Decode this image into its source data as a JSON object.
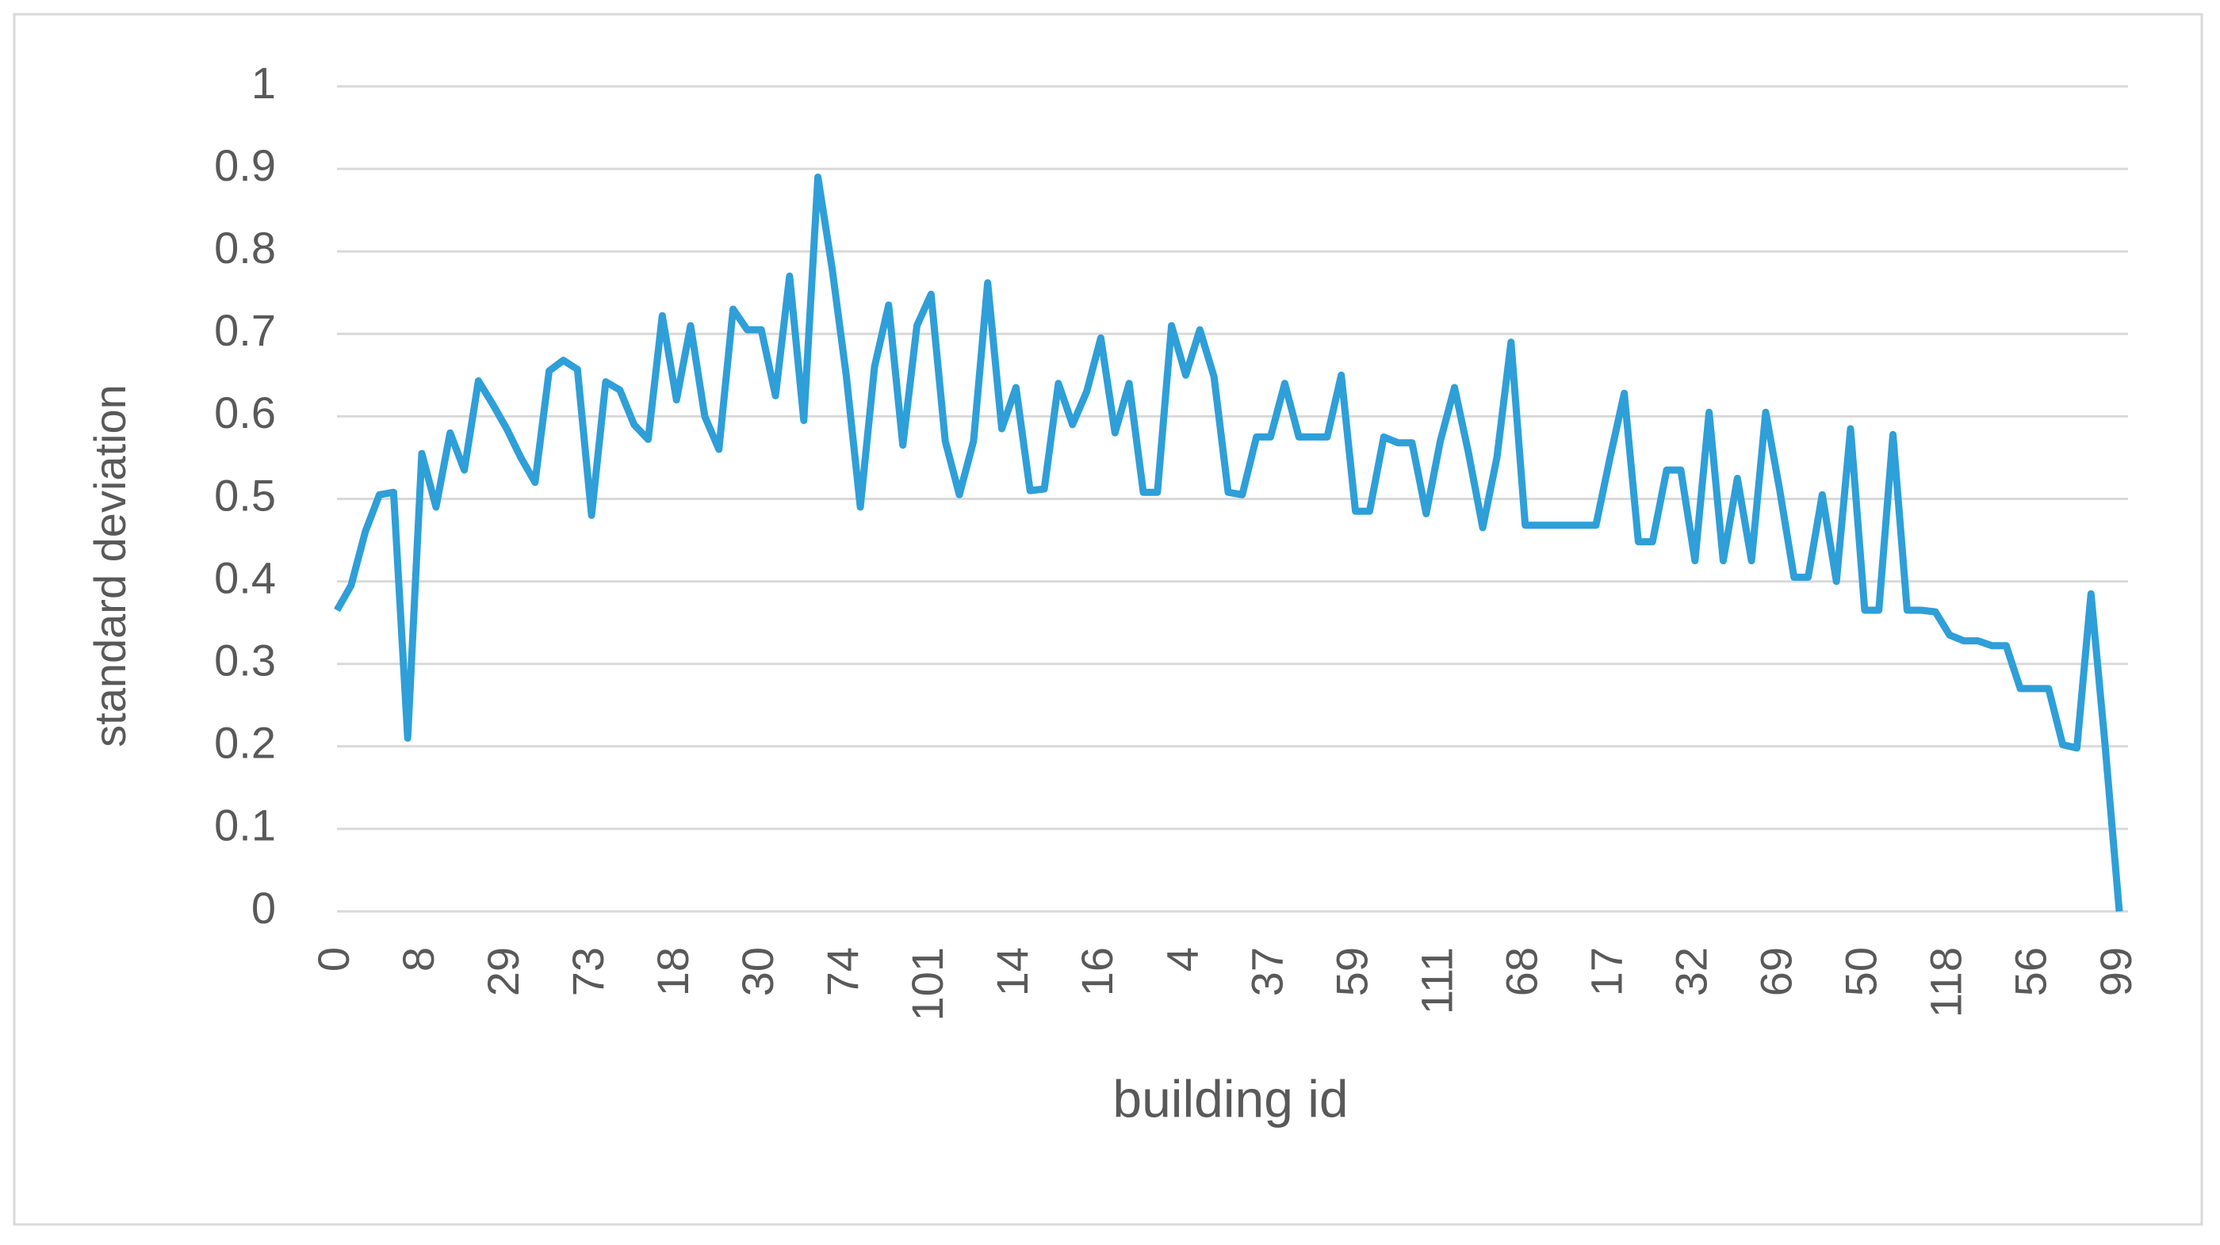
{
  "chart_data": {
    "type": "line",
    "x_label": "building id",
    "y_label": "standard deviation",
    "categories": [
      "0",
      null,
      null,
      null,
      null,
      null,
      "8",
      null,
      null,
      null,
      null,
      null,
      "29",
      null,
      null,
      null,
      null,
      null,
      "73",
      null,
      null,
      null,
      null,
      null,
      "18",
      null,
      null,
      null,
      null,
      null,
      "30",
      null,
      null,
      null,
      null,
      null,
      "74",
      null,
      null,
      null,
      null,
      null,
      "101",
      null,
      null,
      null,
      null,
      null,
      "14",
      null,
      null,
      null,
      null,
      null,
      "16",
      null,
      null,
      null,
      null,
      null,
      "4",
      null,
      null,
      null,
      null,
      null,
      "37",
      null,
      null,
      null,
      null,
      null,
      "59",
      null,
      null,
      null,
      null,
      null,
      "111",
      null,
      null,
      null,
      null,
      null,
      "68",
      null,
      null,
      null,
      null,
      null,
      "17",
      null,
      null,
      null,
      null,
      null,
      "32",
      null,
      null,
      null,
      null,
      null,
      "69",
      null,
      null,
      null,
      null,
      null,
      "50",
      null,
      null,
      null,
      null,
      null,
      "118",
      null,
      null,
      null,
      null,
      null,
      "56",
      null,
      null,
      null,
      null,
      null,
      "99"
    ],
    "values": [
      0.365,
      0.395,
      0.46,
      0.505,
      0.508,
      0.21,
      0.555,
      0.49,
      0.58,
      0.535,
      0.643,
      0.615,
      0.585,
      0.55,
      0.52,
      0.655,
      0.668,
      0.657,
      0.48,
      0.642,
      0.632,
      0.59,
      0.572,
      0.722,
      0.62,
      0.71,
      0.6,
      0.56,
      0.73,
      0.705,
      0.705,
      0.625,
      0.77,
      0.595,
      0.89,
      0.78,
      0.65,
      0.49,
      0.66,
      0.735,
      0.565,
      0.71,
      0.748,
      0.57,
      0.505,
      0.57,
      0.762,
      0.585,
      0.635,
      0.51,
      0.512,
      0.64,
      0.59,
      0.63,
      0.695,
      0.58,
      0.64,
      0.508,
      0.508,
      0.71,
      0.65,
      0.705,
      0.648,
      0.508,
      0.505,
      0.575,
      0.575,
      0.64,
      0.575,
      0.575,
      0.575,
      0.65,
      0.485,
      0.485,
      0.575,
      0.568,
      0.568,
      0.482,
      0.57,
      0.635,
      0.555,
      0.465,
      0.55,
      0.69,
      0.468,
      0.468,
      0.468,
      0.468,
      0.468,
      0.468,
      0.55,
      0.628,
      0.448,
      0.448,
      0.535,
      0.535,
      0.425,
      0.605,
      0.425,
      0.525,
      0.425,
      0.605,
      0.51,
      0.405,
      0.405,
      0.505,
      0.4,
      0.585,
      0.365,
      0.365,
      0.578,
      0.365,
      0.365,
      0.363,
      0.335,
      0.328,
      0.328,
      0.322,
      0.322,
      0.27,
      0.27,
      0.27,
      0.202,
      0.198,
      0.385,
      0.2,
      0
    ],
    "color": "#2e9fd8",
    "ylim": [
      0,
      1
    ],
    "yticks": [
      0,
      0.1,
      0.2,
      0.3,
      0.4,
      0.5,
      0.6,
      0.7,
      0.8,
      0.9,
      1
    ],
    "grid": true
  }
}
